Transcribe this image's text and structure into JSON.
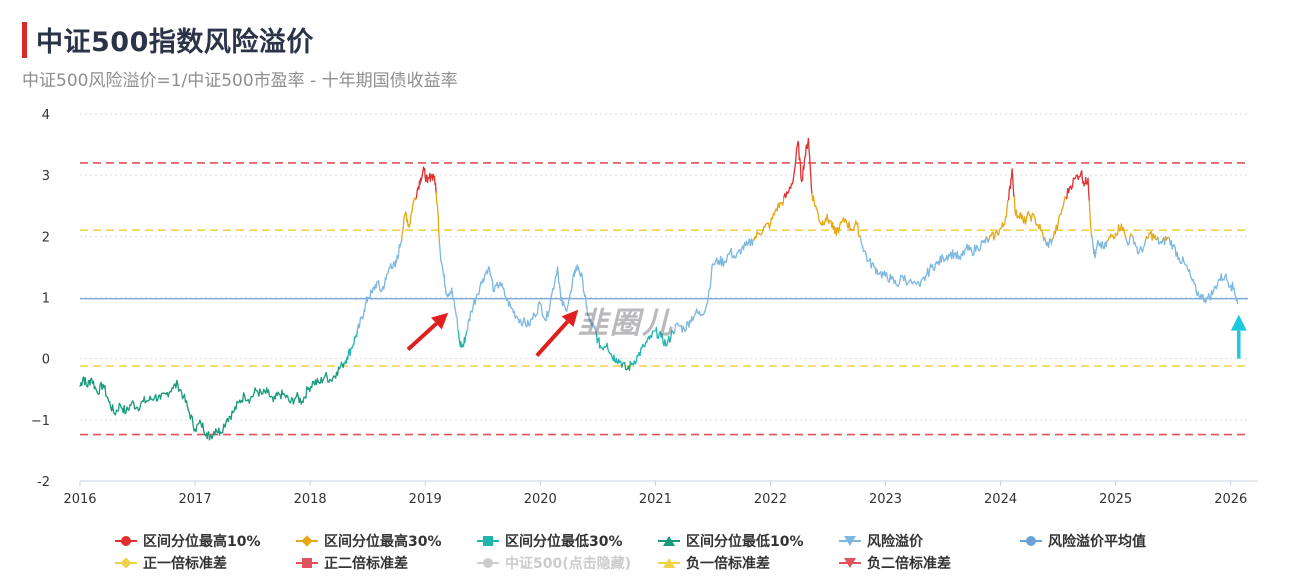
{
  "header": {
    "title": "中证500指数风险溢价",
    "subtitle": "中证500风险溢价=1/中证500市盈率 - 十年期国债收益率"
  },
  "watermark": "韭圈儿",
  "colors": {
    "band_top10": "#e03131",
    "band_top30": "#e6a817",
    "band_low30": "#1fb5ad",
    "band_low10": "#1a9a7a",
    "series": "#7eb8e0",
    "mean": "#6aa2d8",
    "sd1": "#f0d24a",
    "sd2": "#e0535c",
    "arrow_red": "#e02020",
    "arrow_cyan": "#1ec8e0"
  },
  "chart_data": {
    "type": "line",
    "ylim": [
      -2,
      4
    ],
    "yticks": [
      "-2",
      "−1",
      "0",
      "1",
      "2",
      "3",
      "4"
    ],
    "xticks": [
      "2016",
      "2017",
      "2018",
      "2019",
      "2020",
      "2021",
      "2022",
      "2023",
      "2024",
      "2025",
      "2026"
    ],
    "x_range": [
      2016.0,
      2026.15
    ],
    "reference_lines": {
      "mean": 0.98,
      "plus_1sd": 2.1,
      "plus_2sd": 3.2,
      "minus_1sd": -0.12,
      "minus_2sd": -1.24
    },
    "series": [
      {
        "name": "风险溢价",
        "points": [
          [
            2016.0,
            -0.45
          ],
          [
            2016.03,
            -0.3
          ],
          [
            2016.06,
            -0.45
          ],
          [
            2016.1,
            -0.32
          ],
          [
            2016.15,
            -0.55
          ],
          [
            2016.2,
            -0.42
          ],
          [
            2016.25,
            -0.7
          ],
          [
            2016.3,
            -0.9
          ],
          [
            2016.35,
            -0.75
          ],
          [
            2016.4,
            -0.88
          ],
          [
            2016.45,
            -0.72
          ],
          [
            2016.5,
            -0.8
          ],
          [
            2016.55,
            -0.7
          ],
          [
            2016.6,
            -0.68
          ],
          [
            2016.65,
            -0.62
          ],
          [
            2016.7,
            -0.66
          ],
          [
            2016.75,
            -0.58
          ],
          [
            2016.8,
            -0.48
          ],
          [
            2016.85,
            -0.42
          ],
          [
            2016.9,
            -0.62
          ],
          [
            2016.95,
            -0.88
          ],
          [
            2017.0,
            -1.15
          ],
          [
            2017.05,
            -1.05
          ],
          [
            2017.1,
            -1.22
          ],
          [
            2017.13,
            -1.28
          ],
          [
            2017.18,
            -1.15
          ],
          [
            2017.22,
            -1.2
          ],
          [
            2017.28,
            -0.98
          ],
          [
            2017.33,
            -0.88
          ],
          [
            2017.38,
            -0.72
          ],
          [
            2017.43,
            -0.6
          ],
          [
            2017.48,
            -0.66
          ],
          [
            2017.53,
            -0.52
          ],
          [
            2017.58,
            -0.58
          ],
          [
            2017.63,
            -0.55
          ],
          [
            2017.68,
            -0.7
          ],
          [
            2017.73,
            -0.58
          ],
          [
            2017.78,
            -0.6
          ],
          [
            2017.83,
            -0.72
          ],
          [
            2017.88,
            -0.62
          ],
          [
            2017.93,
            -0.7
          ],
          [
            2017.98,
            -0.5
          ],
          [
            2018.03,
            -0.38
          ],
          [
            2018.08,
            -0.4
          ],
          [
            2018.13,
            -0.28
          ],
          [
            2018.18,
            -0.35
          ],
          [
            2018.23,
            -0.22
          ],
          [
            2018.28,
            -0.1
          ],
          [
            2018.32,
            0.02
          ],
          [
            2018.36,
            0.18
          ],
          [
            2018.4,
            0.38
          ],
          [
            2018.43,
            0.55
          ],
          [
            2018.47,
            0.8
          ],
          [
            2018.5,
            1.0
          ],
          [
            2018.54,
            1.08
          ],
          [
            2018.58,
            1.25
          ],
          [
            2018.62,
            1.1
          ],
          [
            2018.66,
            1.3
          ],
          [
            2018.7,
            1.55
          ],
          [
            2018.74,
            1.5
          ],
          [
            2018.77,
            1.75
          ],
          [
            2018.8,
            2.05
          ],
          [
            2018.83,
            2.4
          ],
          [
            2018.86,
            2.15
          ],
          [
            2018.89,
            2.5
          ],
          [
            2018.93,
            2.75
          ],
          [
            2018.96,
            2.95
          ],
          [
            2018.99,
            3.08
          ],
          [
            2019.02,
            2.88
          ],
          [
            2019.05,
            3.0
          ],
          [
            2019.08,
            2.98
          ],
          [
            2019.11,
            2.4
          ],
          [
            2019.13,
            1.75
          ],
          [
            2019.16,
            1.35
          ],
          [
            2019.19,
            1.05
          ],
          [
            2019.23,
            1.15
          ],
          [
            2019.27,
            0.7
          ],
          [
            2019.3,
            0.25
          ],
          [
            2019.33,
            0.2
          ],
          [
            2019.36,
            0.45
          ],
          [
            2019.4,
            0.78
          ],
          [
            2019.45,
            1.05
          ],
          [
            2019.5,
            1.3
          ],
          [
            2019.55,
            1.5
          ],
          [
            2019.6,
            1.1
          ],
          [
            2019.65,
            1.25
          ],
          [
            2019.7,
            1.0
          ],
          [
            2019.75,
            0.82
          ],
          [
            2019.8,
            0.68
          ],
          [
            2019.85,
            0.6
          ],
          [
            2019.9,
            0.55
          ],
          [
            2019.95,
            0.72
          ],
          [
            2020.0,
            0.9
          ],
          [
            2020.05,
            0.62
          ],
          [
            2020.1,
            1.05
          ],
          [
            2020.15,
            1.5
          ],
          [
            2020.18,
            0.95
          ],
          [
            2020.22,
            0.8
          ],
          [
            2020.27,
            1.1
          ],
          [
            2020.3,
            1.45
          ],
          [
            2020.33,
            1.5
          ],
          [
            2020.37,
            1.25
          ],
          [
            2020.4,
            0.85
          ],
          [
            2020.43,
            0.6
          ],
          [
            2020.47,
            0.5
          ],
          [
            2020.5,
            0.3
          ],
          [
            2020.53,
            0.18
          ],
          [
            2020.58,
            0.25
          ],
          [
            2020.62,
            0.05
          ],
          [
            2020.66,
            0.0
          ],
          [
            2020.7,
            -0.05
          ],
          [
            2020.75,
            -0.18
          ],
          [
            2020.8,
            -0.08
          ],
          [
            2020.85,
            0.05
          ],
          [
            2020.9,
            0.2
          ],
          [
            2020.95,
            0.32
          ],
          [
            2021.0,
            0.45
          ],
          [
            2021.05,
            0.35
          ],
          [
            2021.1,
            0.22
          ],
          [
            2021.15,
            0.45
          ],
          [
            2021.2,
            0.55
          ],
          [
            2021.25,
            0.48
          ],
          [
            2021.3,
            0.62
          ],
          [
            2021.35,
            0.75
          ],
          [
            2021.4,
            0.72
          ],
          [
            2021.45,
            0.9
          ],
          [
            2021.5,
            1.55
          ],
          [
            2021.55,
            1.6
          ],
          [
            2021.6,
            1.58
          ],
          [
            2021.65,
            1.75
          ],
          [
            2021.7,
            1.65
          ],
          [
            2021.75,
            1.8
          ],
          [
            2021.8,
            1.85
          ],
          [
            2021.85,
            1.95
          ],
          [
            2021.9,
            2.05
          ],
          [
            2021.95,
            2.15
          ],
          [
            2022.0,
            2.2
          ],
          [
            2022.05,
            2.45
          ],
          [
            2022.1,
            2.55
          ],
          [
            2022.15,
            2.7
          ],
          [
            2022.2,
            2.95
          ],
          [
            2022.24,
            3.55
          ],
          [
            2022.27,
            2.9
          ],
          [
            2022.3,
            3.3
          ],
          [
            2022.33,
            3.6
          ],
          [
            2022.36,
            2.7
          ],
          [
            2022.4,
            2.45
          ],
          [
            2022.44,
            2.2
          ],
          [
            2022.48,
            2.3
          ],
          [
            2022.52,
            2.25
          ],
          [
            2022.56,
            2.05
          ],
          [
            2022.6,
            2.15
          ],
          [
            2022.65,
            2.28
          ],
          [
            2022.7,
            2.12
          ],
          [
            2022.75,
            2.2
          ],
          [
            2022.8,
            1.85
          ],
          [
            2022.85,
            1.6
          ],
          [
            2022.9,
            1.5
          ],
          [
            2022.95,
            1.4
          ],
          [
            2023.0,
            1.35
          ],
          [
            2023.05,
            1.3
          ],
          [
            2023.1,
            1.2
          ],
          [
            2023.15,
            1.35
          ],
          [
            2023.2,
            1.25
          ],
          [
            2023.3,
            1.18
          ],
          [
            2023.35,
            1.35
          ],
          [
            2023.4,
            1.5
          ],
          [
            2023.45,
            1.55
          ],
          [
            2023.5,
            1.65
          ],
          [
            2023.55,
            1.7
          ],
          [
            2023.6,
            1.72
          ],
          [
            2023.65,
            1.62
          ],
          [
            2023.7,
            1.8
          ],
          [
            2023.75,
            1.75
          ],
          [
            2023.8,
            1.82
          ],
          [
            2023.85,
            1.9
          ],
          [
            2023.9,
            1.95
          ],
          [
            2023.95,
            2.02
          ],
          [
            2024.0,
            2.12
          ],
          [
            2024.03,
            2.2
          ],
          [
            2024.07,
            2.6
          ],
          [
            2024.1,
            3.1
          ],
          [
            2024.13,
            2.35
          ],
          [
            2024.17,
            2.38
          ],
          [
            2024.2,
            2.22
          ],
          [
            2024.25,
            2.35
          ],
          [
            2024.3,
            2.28
          ],
          [
            2024.35,
            2.1
          ],
          [
            2024.4,
            1.85
          ],
          [
            2024.45,
            1.95
          ],
          [
            2024.5,
            2.2
          ],
          [
            2024.55,
            2.55
          ],
          [
            2024.6,
            2.8
          ],
          [
            2024.65,
            2.95
          ],
          [
            2024.7,
            3.05
          ],
          [
            2024.73,
            2.85
          ],
          [
            2024.76,
            2.95
          ],
          [
            2024.79,
            2.0
          ],
          [
            2024.82,
            1.65
          ],
          [
            2024.85,
            1.9
          ],
          [
            2024.9,
            1.8
          ],
          [
            2024.95,
            1.98
          ],
          [
            2025.0,
            2.05
          ],
          [
            2025.05,
            2.2
          ],
          [
            2025.1,
            1.9
          ],
          [
            2025.15,
            2.0
          ],
          [
            2025.2,
            1.72
          ],
          [
            2025.25,
            1.85
          ],
          [
            2025.3,
            2.05
          ],
          [
            2025.35,
            1.95
          ],
          [
            2025.4,
            1.88
          ],
          [
            2025.45,
            1.98
          ],
          [
            2025.5,
            1.85
          ],
          [
            2025.55,
            1.65
          ],
          [
            2025.6,
            1.55
          ],
          [
            2025.65,
            1.35
          ],
          [
            2025.7,
            1.1
          ],
          [
            2025.75,
            1.0
          ],
          [
            2025.8,
            0.98
          ],
          [
            2025.85,
            1.1
          ],
          [
            2025.9,
            1.3
          ],
          [
            2025.95,
            1.35
          ],
          [
            2026.0,
            1.2
          ],
          [
            2026.03,
            1.15
          ],
          [
            2026.06,
            0.9
          ]
        ]
      }
    ],
    "annotations": [
      {
        "type": "arrow",
        "color": "red",
        "from": [
          2018.85,
          0.15
        ],
        "to": [
          2019.2,
          0.75
        ]
      },
      {
        "type": "arrow",
        "color": "red",
        "from": [
          2019.97,
          0.05
        ],
        "to": [
          2020.33,
          0.8
        ]
      },
      {
        "type": "arrow",
        "color": "cyan",
        "from": [
          2026.07,
          0.0
        ],
        "to": [
          2026.07,
          0.72
        ]
      }
    ],
    "legend": [
      {
        "label": "区间分位最高10%",
        "marker": "circle",
        "color_key": "band_top10"
      },
      {
        "label": "区间分位最高30%",
        "marker": "diamond",
        "color_key": "band_top30"
      },
      {
        "label": "区间分位最低30%",
        "marker": "rect",
        "color_key": "band_low30"
      },
      {
        "label": "区间分位最低10%",
        "marker": "tri",
        "color_key": "band_low10"
      },
      {
        "label": "风险溢价",
        "marker": "dtri",
        "color_key": "series"
      },
      {
        "label": "风险溢价平均值",
        "marker": "circle",
        "color_key": "mean"
      },
      {
        "label": "正一倍标准差",
        "marker": "diamond",
        "color_key": "sd1"
      },
      {
        "label": "正二倍标准差",
        "marker": "rect",
        "color_key": "sd2"
      },
      {
        "label": "中证500(点击隐藏)",
        "marker": "circle",
        "color_key": "disabled"
      },
      {
        "label": "负一倍标准差",
        "marker": "tri",
        "color_key": "sd1"
      },
      {
        "label": "负二倍标准差",
        "marker": "dtri",
        "color_key": "sd2"
      }
    ],
    "legend_position": "bottom"
  }
}
